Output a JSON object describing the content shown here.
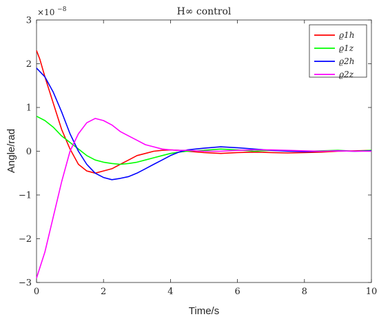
{
  "chart_data": {
    "type": "line",
    "title": "H∞ control",
    "xlabel": "Time/s",
    "ylabel": "Angle/rad",
    "y_exponent_label": "×10",
    "y_exponent_power": "−8",
    "xlim": [
      0,
      10
    ],
    "ylim": [
      -3,
      3
    ],
    "x_ticks": [
      0,
      2,
      4,
      6,
      8,
      10
    ],
    "y_ticks": [
      -3,
      -2,
      -1,
      0,
      1,
      2,
      3
    ],
    "x_tick_labels": [
      "0",
      "2",
      "4",
      "6",
      "8",
      "10"
    ],
    "y_tick_labels": [
      "−3",
      "−2",
      "−1",
      "0",
      "1",
      "2",
      "3"
    ],
    "legend_position": "top-right",
    "grid": false,
    "series": [
      {
        "name": "ϱ1h",
        "color": "#ff0000",
        "x": [
          0,
          0.1,
          0.25,
          0.5,
          0.75,
          1.0,
          1.25,
          1.5,
          1.75,
          2.0,
          2.25,
          2.5,
          2.75,
          3.0,
          3.25,
          3.5,
          3.75,
          4.0,
          4.25,
          4.5,
          5.0,
          5.5,
          6.0,
          6.5,
          7.0,
          7.5,
          8.0,
          8.5,
          9.0,
          9.5,
          10.0
        ],
        "y": [
          2.3,
          2.1,
          1.7,
          1.1,
          0.5,
          0.05,
          -0.3,
          -0.45,
          -0.5,
          -0.45,
          -0.4,
          -0.3,
          -0.2,
          -0.1,
          -0.05,
          0.0,
          0.02,
          0.03,
          0.02,
          0.0,
          -0.03,
          -0.05,
          -0.03,
          -0.02,
          -0.03,
          -0.04,
          -0.03,
          -0.02,
          0.0,
          0.01,
          0.02
        ]
      },
      {
        "name": "ϱ1z",
        "color": "#00ff00",
        "x": [
          0,
          0.25,
          0.5,
          0.75,
          1.0,
          1.25,
          1.5,
          1.75,
          2.0,
          2.25,
          2.5,
          2.75,
          3.0,
          3.25,
          3.5,
          3.75,
          4.0,
          4.25,
          4.5,
          5.0,
          5.5,
          6.0,
          6.5,
          7.0,
          7.5,
          8.0,
          8.5,
          9.0,
          9.5,
          10.0
        ],
        "y": [
          0.8,
          0.7,
          0.55,
          0.35,
          0.2,
          0.05,
          -0.1,
          -0.2,
          -0.25,
          -0.28,
          -0.3,
          -0.28,
          -0.25,
          -0.2,
          -0.15,
          -0.1,
          -0.05,
          -0.02,
          0.0,
          0.02,
          0.05,
          0.03,
          0.0,
          0.02,
          0.01,
          0.0,
          0.01,
          0.02,
          0.0,
          0.02
        ]
      },
      {
        "name": "ϱ2h",
        "color": "#0000ff",
        "x": [
          0,
          0.25,
          0.5,
          0.75,
          1.0,
          1.25,
          1.5,
          1.75,
          2.0,
          2.25,
          2.5,
          2.75,
          3.0,
          3.25,
          3.5,
          3.75,
          4.0,
          4.25,
          4.5,
          5.0,
          5.5,
          6.0,
          6.5,
          7.0,
          7.5,
          8.0,
          8.5,
          9.0,
          9.5,
          10.0
        ],
        "y": [
          1.9,
          1.7,
          1.35,
          0.9,
          0.4,
          0.0,
          -0.3,
          -0.5,
          -0.6,
          -0.65,
          -0.62,
          -0.58,
          -0.5,
          -0.4,
          -0.3,
          -0.2,
          -0.1,
          -0.02,
          0.03,
          0.07,
          0.1,
          0.08,
          0.05,
          0.02,
          0.0,
          -0.01,
          0.0,
          0.01,
          0.0,
          0.01
        ]
      },
      {
        "name": "ϱ2z",
        "color": "#ff00ff",
        "x": [
          0,
          0.25,
          0.5,
          0.75,
          1.0,
          1.25,
          1.5,
          1.75,
          2.0,
          2.25,
          2.5,
          2.75,
          3.0,
          3.25,
          3.5,
          3.75,
          4.0,
          4.25,
          4.5,
          5.0,
          5.5,
          6.0,
          6.5,
          7.0,
          7.5,
          8.0,
          8.5,
          9.0,
          9.5,
          10.0
        ],
        "y": [
          -2.9,
          -2.3,
          -1.5,
          -0.7,
          0.0,
          0.4,
          0.65,
          0.75,
          0.7,
          0.6,
          0.45,
          0.35,
          0.25,
          0.15,
          0.1,
          0.05,
          0.03,
          0.02,
          0.02,
          0.0,
          0.0,
          0.02,
          0.03,
          0.03,
          0.02,
          0.01,
          0.0,
          0.01,
          0.0,
          0.0
        ]
      }
    ]
  }
}
